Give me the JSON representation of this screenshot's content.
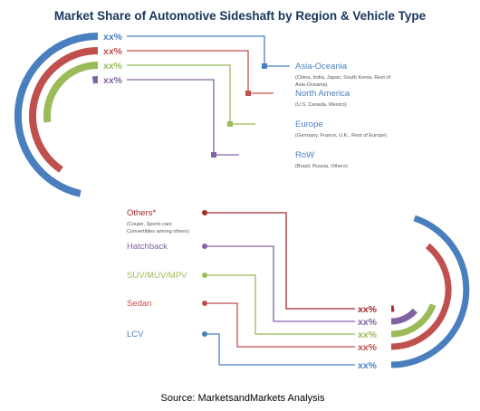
{
  "chart_data": {
    "type": "radial-bar",
    "title": "Market Share of Automotive Sideshaft by Region & Vehicle Type",
    "source": "Source: MarketsandMarkets Analysis",
    "colors": {
      "title": "#17365d",
      "blue": "#4a7fbf",
      "red": "#c0504d",
      "green": "#9bbb59",
      "purple": "#8064a2",
      "darkred": "#a52a2a"
    },
    "charts": [
      {
        "name": "Region",
        "series": [
          {
            "label": "Asia-Oceania",
            "sublabel": [
              "(China, India, Japan, South Korea, Rest of",
              "Asia-Oceania)"
            ],
            "value_label": "xx%",
            "color": "#4a7fbf",
            "share": 0.62
          },
          {
            "label": "North America",
            "sublabel": [
              "(U.S, Canada, Mexico)"
            ],
            "value_label": "xx%",
            "color": "#c0504d",
            "share": 0.54
          },
          {
            "label": "Europe",
            "sublabel": [
              "(Germany, France, U.K., Rest of Europe)"
            ],
            "value_label": "xx%",
            "color": "#9bbb59",
            "share": 0.36
          },
          {
            "label": "RoW",
            "sublabel": [
              "(Brazil, Russia, Others)"
            ],
            "value_label": "xx%",
            "color": "#8064a2",
            "share": 0.03
          }
        ]
      },
      {
        "name": "Vehicle Type",
        "series": [
          {
            "label": "Others*",
            "sublabel": [
              "(Coupe, Sports cars",
              "Convertibles among others)"
            ],
            "value_label": "xx%",
            "color": "#a52a2a",
            "share": 0.03
          },
          {
            "label": "Hatchback",
            "sublabel": [],
            "value_label": "xx%",
            "color": "#8064a2",
            "share": 0.18
          },
          {
            "label": "SUV/MUV/MPV",
            "sublabel": [],
            "value_label": "xx%",
            "color": "#9bbb59",
            "share": 0.26
          },
          {
            "label": "Sedan",
            "sublabel": [],
            "value_label": "xx%",
            "color": "#c0504d",
            "share": 0.52
          },
          {
            "label": "LCV",
            "sublabel": [],
            "value_label": "xx%",
            "color": "#4a7fbf",
            "share": 0.6
          }
        ]
      }
    ]
  }
}
